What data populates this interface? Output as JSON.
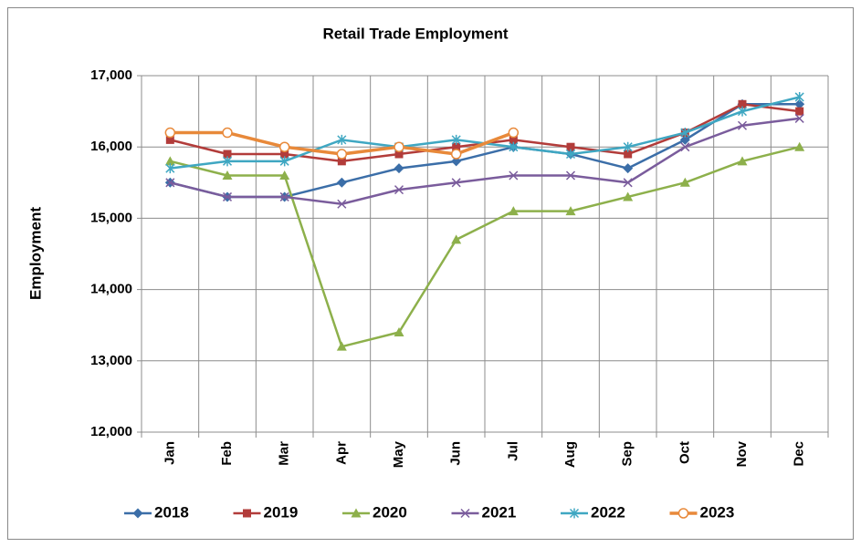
{
  "chart_data": {
    "type": "line",
    "title": "Retail Trade Employment",
    "y_label": "Employment",
    "categories": [
      "Jan",
      "Feb",
      "Mar",
      "Apr",
      "May",
      "Jun",
      "Jul",
      "Aug",
      "Sep",
      "Oct",
      "Nov",
      "Dec"
    ],
    "ylim": [
      12000,
      17000
    ],
    "yticks": [
      {
        "value": 12000,
        "label": "12,000"
      },
      {
        "value": 13000,
        "label": "13,000"
      },
      {
        "value": 14000,
        "label": "14,000"
      },
      {
        "value": 15000,
        "label": "15,000"
      },
      {
        "value": 16000,
        "label": "16,000"
      },
      {
        "value": 17000,
        "label": "17,000"
      }
    ],
    "grid": true,
    "legend": "bottom",
    "series": [
      {
        "name": "2018",
        "color": "#3b6ea8",
        "marker": "diamond",
        "values": [
          15500,
          15300,
          15300,
          15500,
          15700,
          15800,
          16000,
          15900,
          15700,
          16100,
          16600,
          16600
        ]
      },
      {
        "name": "2019",
        "color": "#b23c3a",
        "marker": "square",
        "values": [
          16100,
          15900,
          15900,
          15800,
          15900,
          16000,
          16100,
          16000,
          15900,
          16200,
          16600,
          16500
        ]
      },
      {
        "name": "2020",
        "color": "#8db04b",
        "marker": "triangle",
        "values": [
          15800,
          15600,
          15600,
          13200,
          13400,
          14700,
          15100,
          15100,
          15300,
          15500,
          15800,
          16000
        ]
      },
      {
        "name": "2021",
        "color": "#7a5c9c",
        "marker": "x",
        "values": [
          15500,
          15300,
          15300,
          15200,
          15400,
          15500,
          15600,
          15600,
          15500,
          16000,
          16300,
          16400
        ]
      },
      {
        "name": "2022",
        "color": "#3fa7c2",
        "marker": "star",
        "values": [
          15700,
          15800,
          15800,
          16100,
          16000,
          16100,
          16000,
          15900,
          16000,
          16200,
          16500,
          16700
        ]
      },
      {
        "name": "2023",
        "color": "#e8893a",
        "marker": "circle",
        "values": [
          16200,
          16200,
          16000,
          15900,
          16000,
          15900,
          16200,
          null,
          null,
          null,
          null,
          null
        ]
      }
    ]
  }
}
